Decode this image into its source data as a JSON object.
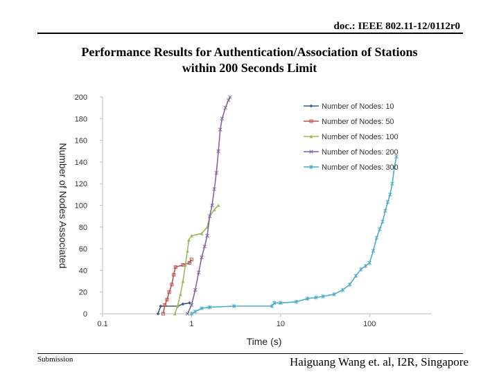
{
  "header": {
    "doc_id": "doc.: IEEE 802.11-12/0112r0"
  },
  "slide": {
    "title_line1": "Performance Results for Authentication/Association of Stations",
    "title_line2": "within 200 Seconds Limit"
  },
  "footer": {
    "left": "Submission",
    "right": "Haiguang Wang et. al, I2R, Singapore"
  },
  "chart_data": {
    "type": "line",
    "x_scale": "log",
    "xlabel": "Time (s)",
    "ylabel": "Number of Nodes Associated",
    "xlim": [
      0.1,
      500
    ],
    "ylim": [
      0,
      200
    ],
    "x_ticks": [
      0.1,
      1,
      10,
      100
    ],
    "x_tick_labels": [
      "0.1",
      "1",
      "10",
      "100"
    ],
    "y_ticks": [
      0,
      20,
      40,
      60,
      80,
      100,
      120,
      140,
      160,
      180,
      200
    ],
    "y_tick_labels": [
      "0",
      "20",
      "40",
      "60",
      "80",
      "100",
      "120",
      "140",
      "160",
      "180",
      "200"
    ],
    "grid": false,
    "legend_position": "top-right",
    "series": [
      {
        "name": "Number of Nodes: 10",
        "color": "#3d5a80",
        "marker": "diamond",
        "points": [
          [
            0.42,
            0
          ],
          [
            0.45,
            7
          ],
          [
            0.7,
            7
          ],
          [
            0.8,
            9
          ],
          [
            0.95,
            10
          ]
        ]
      },
      {
        "name": "Number of Nodes: 50",
        "color": "#c0504d",
        "marker": "square",
        "points": [
          [
            0.48,
            0
          ],
          [
            0.5,
            8
          ],
          [
            0.53,
            13
          ],
          [
            0.56,
            20
          ],
          [
            0.6,
            27
          ],
          [
            0.63,
            36
          ],
          [
            0.66,
            43
          ],
          [
            0.8,
            45
          ],
          [
            0.95,
            47
          ],
          [
            1.0,
            50
          ]
        ]
      },
      {
        "name": "Number of Nodes: 100",
        "color": "#9bbb59",
        "marker": "triangle",
        "points": [
          [
            0.65,
            0
          ],
          [
            0.7,
            8
          ],
          [
            0.75,
            18
          ],
          [
            0.8,
            30
          ],
          [
            0.85,
            45
          ],
          [
            0.9,
            58
          ],
          [
            0.93,
            68
          ],
          [
            1.0,
            72
          ],
          [
            1.3,
            74
          ],
          [
            1.5,
            80
          ],
          [
            1.6,
            90
          ],
          [
            1.8,
            96
          ],
          [
            2.0,
            100
          ]
        ]
      },
      {
        "name": "Number of Nodes: 200",
        "color": "#8064a2",
        "marker": "x",
        "points": [
          [
            0.9,
            0
          ],
          [
            1.0,
            8
          ],
          [
            1.1,
            22
          ],
          [
            1.2,
            38
          ],
          [
            1.3,
            52
          ],
          [
            1.4,
            62
          ],
          [
            1.5,
            72
          ],
          [
            1.6,
            90
          ],
          [
            1.7,
            100
          ],
          [
            1.8,
            115
          ],
          [
            1.9,
            130
          ],
          [
            2.0,
            150
          ],
          [
            2.1,
            170
          ],
          [
            2.2,
            180
          ],
          [
            2.4,
            190
          ],
          [
            2.6,
            197
          ],
          [
            2.7,
            200
          ]
        ]
      },
      {
        "name": "Number of Nodes: 300",
        "color": "#4bacc6",
        "marker": "star",
        "points": [
          [
            1.0,
            0
          ],
          [
            1.1,
            2
          ],
          [
            1.3,
            5
          ],
          [
            1.6,
            6
          ],
          [
            3,
            7
          ],
          [
            8,
            7
          ],
          [
            8.5,
            10
          ],
          [
            10,
            10
          ],
          [
            15,
            11
          ],
          [
            20,
            14
          ],
          [
            25,
            15
          ],
          [
            30,
            16
          ],
          [
            40,
            18
          ],
          [
            50,
            22
          ],
          [
            60,
            27
          ],
          [
            70,
            35
          ],
          [
            80,
            41
          ],
          [
            90,
            44
          ],
          [
            100,
            47
          ],
          [
            110,
            58
          ],
          [
            120,
            70
          ],
          [
            130,
            78
          ],
          [
            140,
            85
          ],
          [
            150,
            95
          ],
          [
            160,
            103
          ],
          [
            170,
            110
          ],
          [
            180,
            120
          ],
          [
            190,
            135
          ],
          [
            200,
            145
          ]
        ]
      }
    ]
  }
}
